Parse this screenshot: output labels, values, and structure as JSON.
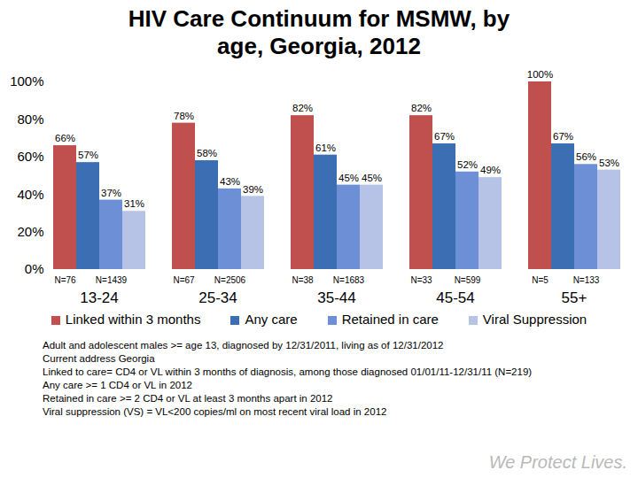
{
  "chart_data": {
    "type": "bar",
    "title": "HIV Care Continuum for MSMW, by age, Georgia, 2012",
    "categories": [
      "13-24",
      "25-34",
      "35-44",
      "45-54",
      "55+"
    ],
    "series": [
      {
        "name": "Linked within 3 months",
        "color": "#c0504d",
        "values": [
          66,
          78,
          82,
          82,
          100
        ],
        "value_labels": [
          "66%",
          "78%",
          "82%",
          "82%",
          "100%"
        ]
      },
      {
        "name": "Any care",
        "color": "#3c6eb4",
        "values": [
          57,
          58,
          61,
          67,
          67
        ],
        "value_labels": [
          "57%",
          "58%",
          "61%",
          "67%",
          "67%"
        ]
      },
      {
        "name": "Retained in care",
        "color": "#6d8fd6",
        "values": [
          37,
          43,
          45,
          52,
          56
        ],
        "value_labels": [
          "37%",
          "43%",
          "45%",
          "52%",
          "56%"
        ]
      },
      {
        "name": "Viral Suppression",
        "color": "#b6c3e6",
        "values": [
          31,
          39,
          45,
          49,
          53
        ],
        "value_labels": [
          "31%",
          "39%",
          "45%",
          "49%",
          "53%"
        ]
      }
    ],
    "n_linked": [
      "N=76",
      "N=67",
      "N=38",
      "N=33",
      "N=5"
    ],
    "n_all": [
      "N=1439",
      "N=2506",
      "N=1683",
      "N=599",
      "N=133"
    ],
    "ylim": [
      0,
      100
    ],
    "yticks": [
      {
        "value": 0,
        "label": "0%"
      },
      {
        "value": 20,
        "label": "20%"
      },
      {
        "value": 40,
        "label": "40%"
      },
      {
        "value": 60,
        "label": "60%"
      },
      {
        "value": 80,
        "label": "80%"
      },
      {
        "value": 100,
        "label": "100%"
      }
    ],
    "grid": false,
    "data_labels": true,
    "legend": "bottom",
    "notes": [
      "Adult and adolescent males >= age 13, diagnosed by 12/31/2011, living as of 12/31/2012",
      "Current address Georgia",
      "Linked to care= CD4 or VL within 3 months of diagnosis, among those diagnosed 01/01/11-12/31/11 (N=219)",
      "Any care >= 1 CD4 or VL in 2012",
      "Retained in care >= 2 CD4 or VL at least 3 months apart in 2012",
      "Viral suppression (VS) = VL<200 copies/ml on most recent viral load in 2012"
    ],
    "footer": "We Protect Lives."
  }
}
